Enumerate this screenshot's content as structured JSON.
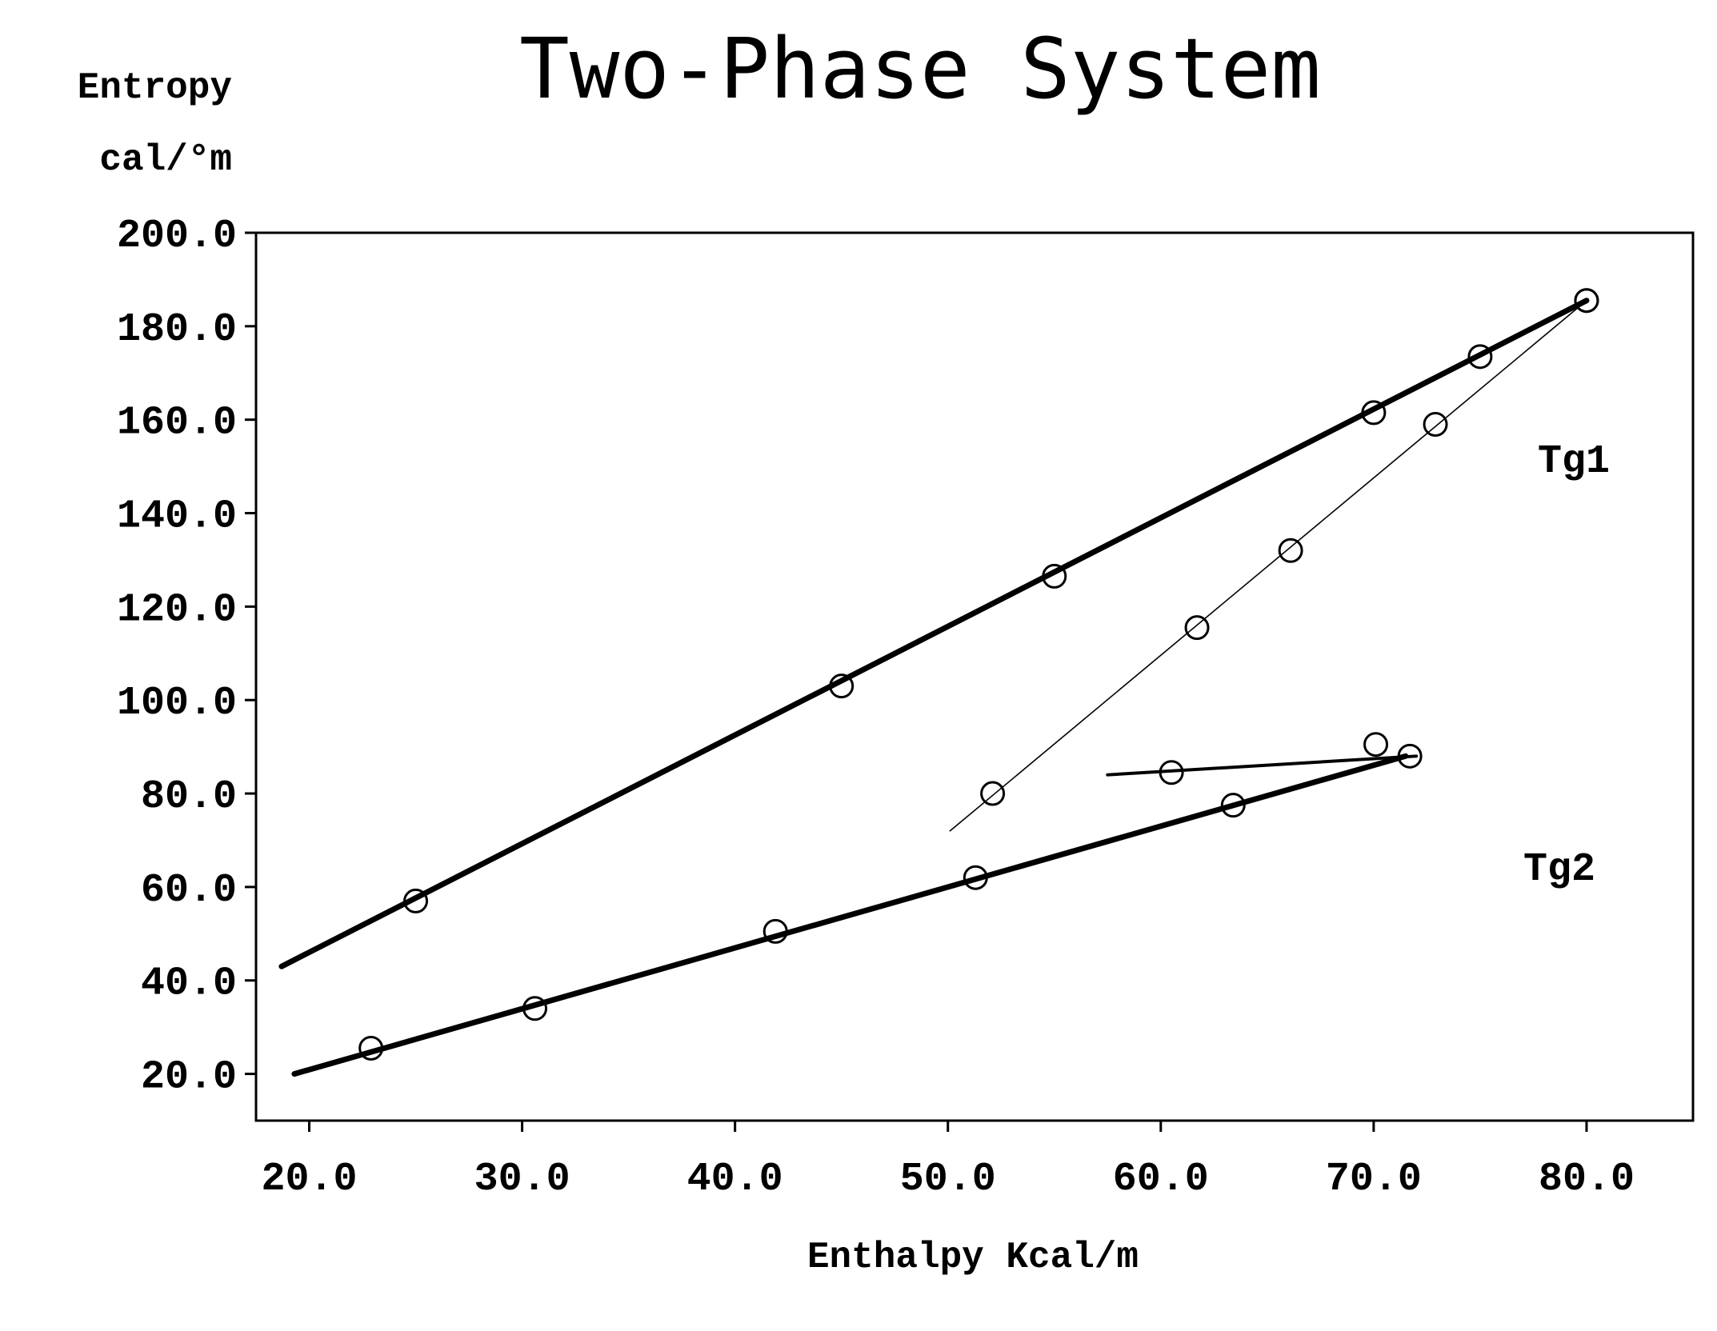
{
  "chart_data": {
    "type": "scatter",
    "title": "Two-Phase System",
    "ylabel": "Entropy",
    "ylabel_unit": "cal/°m",
    "xlabel": "Enthalpy Kcal/m",
    "xlim": [
      17.5,
      85.0
    ],
    "ylim": [
      10.0,
      200.0
    ],
    "x_ticks": [
      "20.0",
      "30.0",
      "40.0",
      "50.0",
      "60.0",
      "70.0",
      "80.0"
    ],
    "y_ticks": [
      "20.0",
      "40.0",
      "60.0",
      "80.0",
      "100.0",
      "120.0",
      "140.0",
      "160.0",
      "180.0",
      "200.0"
    ],
    "grid": false,
    "annotations": [
      "Tg1",
      "Tg2"
    ],
    "series": [
      {
        "style": "thick",
        "line": [
          [
            18.7,
            43.0
          ],
          [
            80.0,
            185.5
          ]
        ],
        "points": [
          [
            25.0,
            57.0
          ],
          [
            45.0,
            103.0
          ],
          [
            55.0,
            126.5
          ],
          [
            70.0,
            161.5
          ],
          [
            75.0,
            173.5
          ],
          [
            80.0,
            185.5
          ]
        ]
      },
      {
        "style": "thin",
        "line": [
          [
            50.1,
            72.0
          ],
          [
            80.0,
            185.5
          ]
        ],
        "points": [
          [
            52.1,
            80.0
          ],
          [
            61.7,
            115.5
          ],
          [
            66.1,
            132.0
          ],
          [
            72.9,
            159.0
          ],
          [
            80.0,
            185.5
          ]
        ]
      },
      {
        "style": "medium",
        "line": [
          [
            57.5,
            84.0
          ],
          [
            72.0,
            88.0
          ]
        ],
        "points": [
          [
            60.5,
            84.5
          ],
          [
            70.1,
            90.5
          ],
          [
            71.7,
            88.0
          ]
        ]
      },
      {
        "style": "thick",
        "line": [
          [
            19.3,
            20.0
          ],
          [
            71.5,
            88.0
          ]
        ],
        "points": [
          [
            22.9,
            25.5
          ],
          [
            30.6,
            34.0
          ],
          [
            41.9,
            50.5
          ],
          [
            51.3,
            62.0
          ],
          [
            63.4,
            77.5
          ]
        ]
      }
    ]
  }
}
